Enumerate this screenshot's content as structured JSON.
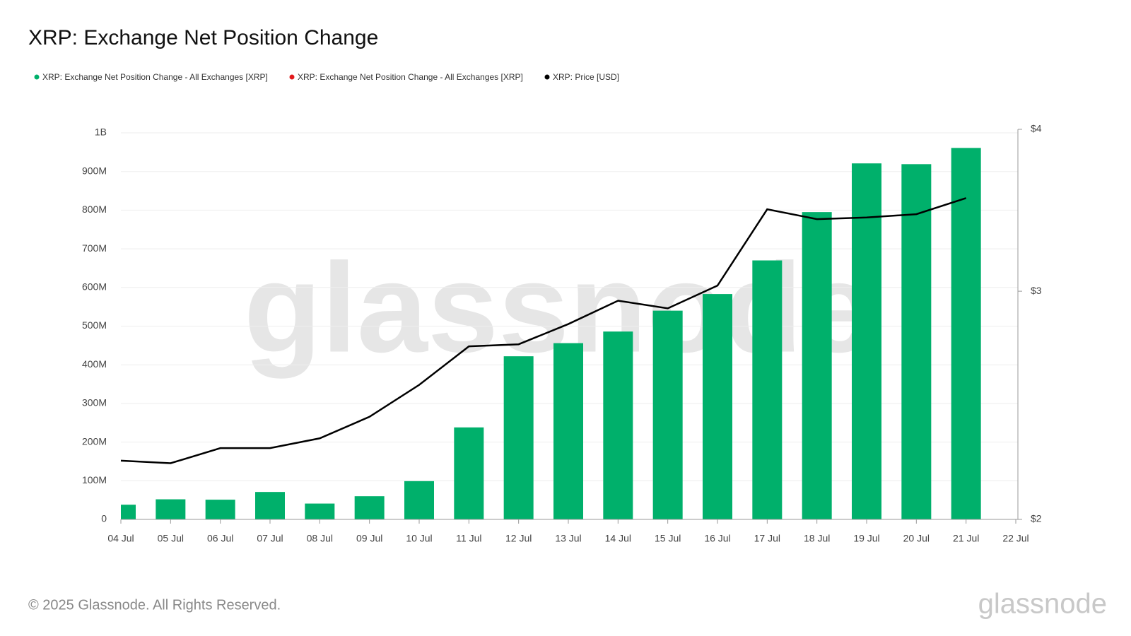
{
  "chart_data": {
    "type": "bar-line",
    "title": "XRP: Exchange Net Position Change",
    "watermark": "glassnode",
    "footer": "© 2025 Glassnode. All Rights Reserved.",
    "logo": "glassnode",
    "categories": [
      "04 Jul",
      "05 Jul",
      "06 Jul",
      "07 Jul",
      "08 Jul",
      "09 Jul",
      "10 Jul",
      "11 Jul",
      "12 Jul",
      "13 Jul",
      "14 Jul",
      "15 Jul",
      "16 Jul",
      "17 Jul",
      "18 Jul",
      "19 Jul",
      "20 Jul",
      "21 Jul",
      "22 Jul"
    ],
    "series": [
      {
        "name": "XRP: Exchange Net Position Change - All Exchanges [XRP]",
        "color": "#00b06b",
        "kind": "bar",
        "values": [
          38000000,
          52000000,
          51000000,
          71000000,
          41000000,
          60000000,
          99000000,
          238000000,
          422000000,
          456000000,
          486000000,
          540000000,
          583000000,
          670000000,
          795000000,
          921000000,
          919000000,
          961000000,
          null
        ]
      },
      {
        "name": "XRP: Exchange Net Position Change - All Exchanges [XRP]",
        "color": "#e31a1c",
        "kind": "bar",
        "values": [
          null,
          null,
          null,
          null,
          null,
          null,
          null,
          null,
          null,
          null,
          null,
          null,
          null,
          null,
          null,
          null,
          null,
          null,
          null
        ]
      },
      {
        "name": "XRP: Price [USD]",
        "color": "#000000",
        "kind": "line",
        "axis": "y2",
        "values": [
          2.22,
          2.21,
          2.27,
          2.27,
          2.31,
          2.4,
          2.54,
          2.72,
          2.73,
          2.83,
          2.95,
          2.91,
          3.03,
          3.47,
          3.41,
          3.42,
          3.44,
          3.54,
          null
        ]
      }
    ],
    "ylim": [
      0,
      1000000000
    ],
    "yticks": [
      {
        "value": 0,
        "label": "0"
      },
      {
        "value": 100000000,
        "label": "100M"
      },
      {
        "value": 200000000,
        "label": "200M"
      },
      {
        "value": 300000000,
        "label": "300M"
      },
      {
        "value": 400000000,
        "label": "400M"
      },
      {
        "value": 500000000,
        "label": "500M"
      },
      {
        "value": 600000000,
        "label": "600M"
      },
      {
        "value": 700000000,
        "label": "700M"
      },
      {
        "value": 800000000,
        "label": "800M"
      },
      {
        "value": 900000000,
        "label": "900M"
      },
      {
        "value": 1000000000,
        "label": "1B"
      }
    ],
    "y2lim": [
      2,
      4
    ],
    "y2ticks": [
      {
        "value": 2,
        "label": "$2"
      },
      {
        "value": 3,
        "label": "$3"
      },
      {
        "value": 4,
        "label": "$4"
      }
    ],
    "y2scale": "log",
    "grid": true
  }
}
